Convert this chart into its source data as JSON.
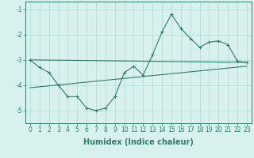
{
  "line1_x": [
    0,
    1,
    2,
    3,
    4,
    5,
    6,
    7,
    8,
    9,
    10,
    11,
    12,
    13,
    14,
    15,
    16,
    17,
    18,
    19,
    20,
    21,
    22,
    23
  ],
  "line1_y": [
    -3.0,
    -3.3,
    -3.5,
    -4.0,
    -4.45,
    -4.45,
    -4.9,
    -5.0,
    -4.9,
    -4.45,
    -3.5,
    -3.25,
    -3.6,
    -2.8,
    -1.9,
    -1.2,
    -1.75,
    -2.15,
    -2.5,
    -2.3,
    -2.25,
    -2.4,
    -3.05,
    -3.1
  ],
  "line2_x": [
    0,
    23
  ],
  "line2_y": [
    -3.0,
    -3.1
  ],
  "line3_x": [
    0,
    23
  ],
  "line3_y": [
    -4.1,
    -3.25
  ],
  "line_color": "#2e7d6e",
  "bg_color": "#d8f0ee",
  "grid_color": "#b0d8d4",
  "xlabel": "Humidex (Indice chaleur)",
  "xlim_min": -0.5,
  "xlim_max": 23.5,
  "ylim_min": -5.5,
  "ylim_max": -0.7,
  "yticks": [
    -5,
    -4,
    -3,
    -2,
    -1
  ],
  "xticks": [
    0,
    1,
    2,
    3,
    4,
    5,
    6,
    7,
    8,
    9,
    10,
    11,
    12,
    13,
    14,
    15,
    16,
    17,
    18,
    19,
    20,
    21,
    22,
    23
  ],
  "xlabel_fontsize": 7,
  "tick_fontsize": 5.5
}
